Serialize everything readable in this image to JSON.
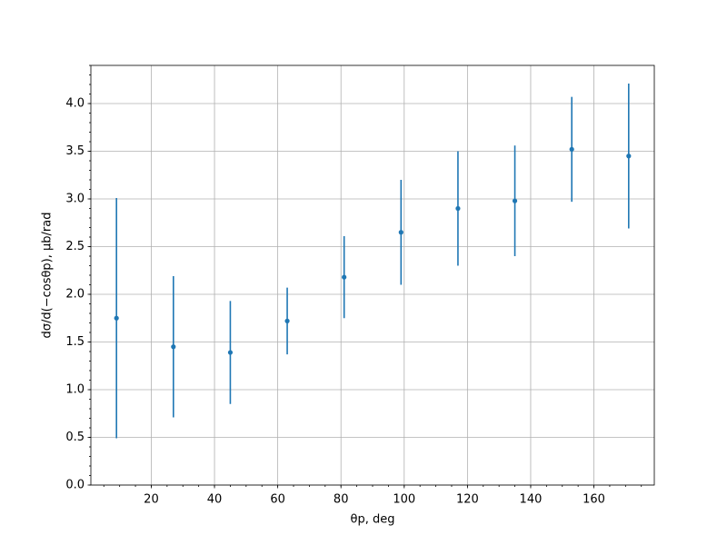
{
  "chart_data": {
    "type": "errorbar",
    "x_label": "θp, deg",
    "y_label": "dσ/d(−cosθp), μb/rad",
    "x": [
      9,
      27,
      45,
      63,
      81,
      99,
      117,
      135,
      153,
      171
    ],
    "series": [
      {
        "color": "#1f77b4",
        "values": [
          1.75,
          1.45,
          1.39,
          1.72,
          2.18,
          2.65,
          2.9,
          2.98,
          3.52,
          3.45
        ],
        "errors": [
          1.26,
          0.74,
          0.54,
          0.35,
          0.43,
          0.55,
          0.6,
          0.58,
          0.55,
          0.76
        ]
      }
    ],
    "xlim": [
      0.9,
      179.1
    ],
    "xticks": [
      20,
      40,
      60,
      80,
      100,
      120,
      140,
      160
    ],
    "ylim": [
      0,
      4.4
    ],
    "yticks": [
      {
        "value": 0,
        "label": "0.0"
      },
      0.5,
      {
        "value": 1,
        "label": "1.0"
      },
      1.5,
      {
        "value": 2,
        "label": "2.0"
      },
      2.5,
      {
        "value": 3,
        "label": "3.0"
      },
      3.5,
      {
        "value": 4,
        "label": "4.0"
      }
    ],
    "grid": true,
    "minor_ticks": true
  }
}
